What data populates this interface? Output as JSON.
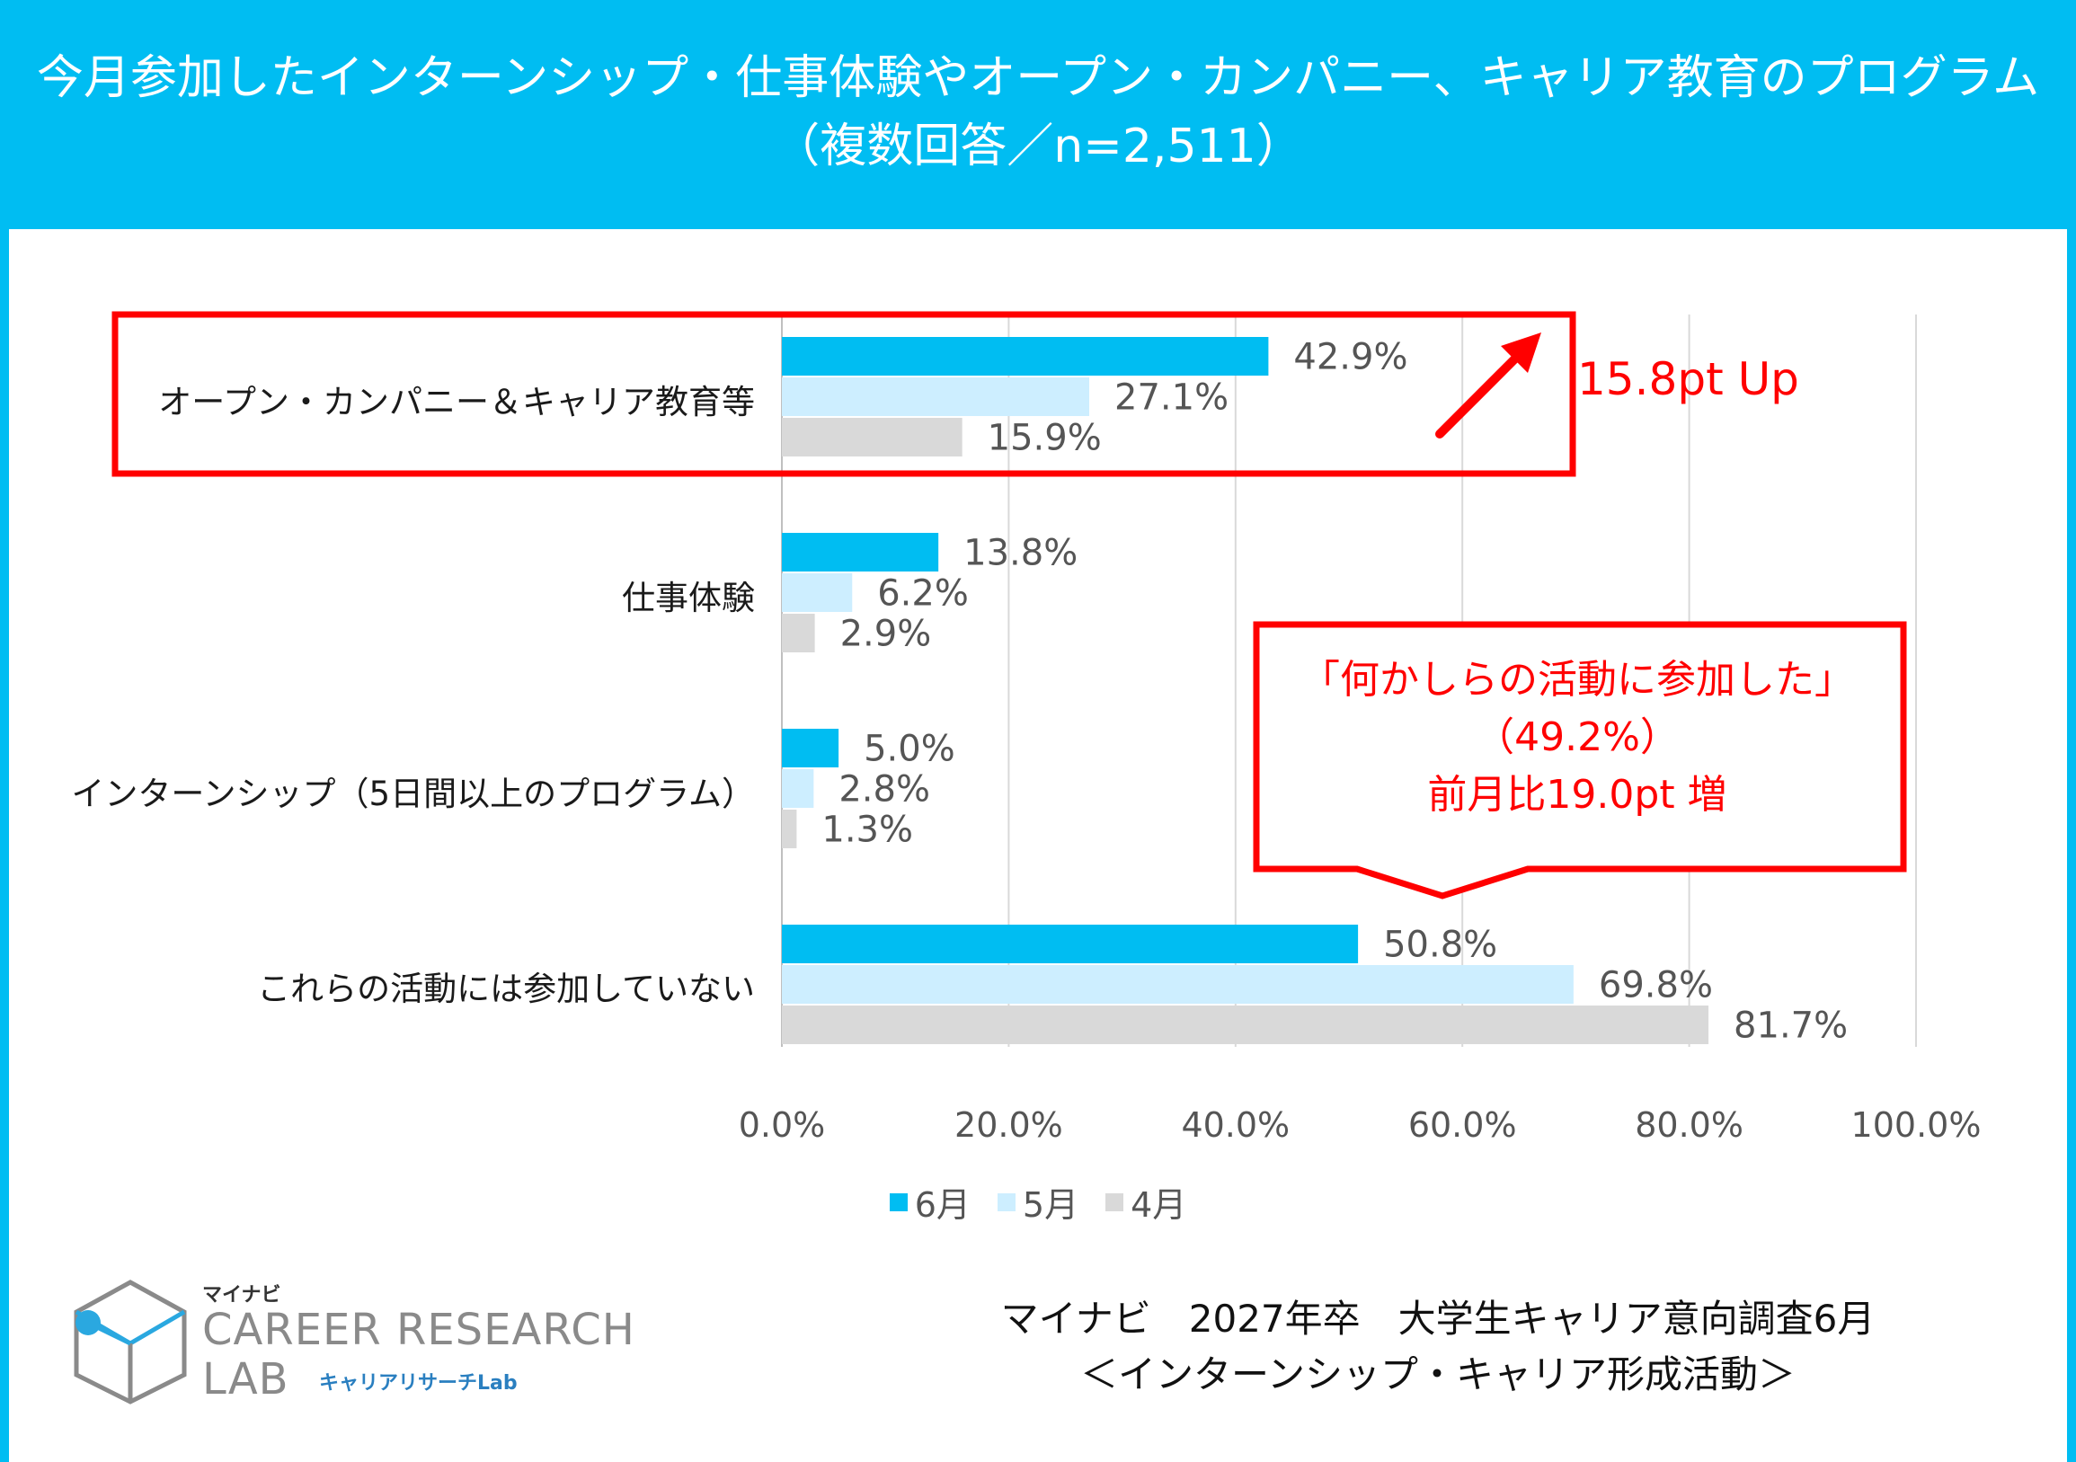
{
  "header": {
    "title_line1": "今月参加したインターンシップ・仕事体験やオープン・カンパニー、キャリア教育のプログラム",
    "title_line2": "（複数回答／n=2,511）"
  },
  "colors": {
    "header_bg": "#00bdf2",
    "june": "#00bdf2",
    "may": "#cdeeff",
    "april": "#d9d9d9",
    "highlight": "#ff0000"
  },
  "chart_data": {
    "type": "bar",
    "orientation": "horizontal",
    "categories": [
      "オープン・カンパニー＆キャリア教育等",
      "仕事体験",
      "インターンシップ（5日間以上のプログラム）",
      "これらの活動には参加していない"
    ],
    "series": [
      {
        "name": "6月",
        "values": [
          42.9,
          13.8,
          5.0,
          50.8
        ],
        "labels": [
          "42.9%",
          "13.8%",
          "5.0%",
          "50.8%"
        ]
      },
      {
        "name": "5月",
        "values": [
          27.1,
          6.2,
          2.8,
          69.8
        ],
        "labels": [
          "27.1%",
          "6.2%",
          "2.8%",
          "69.8%"
        ]
      },
      {
        "name": "4月",
        "values": [
          15.9,
          2.9,
          1.3,
          81.7
        ],
        "labels": [
          "15.9%",
          "2.9%",
          "1.3%",
          "81.7%"
        ]
      }
    ],
    "xlim": [
      0,
      100
    ],
    "xticks": [
      "0.0%",
      "20.0%",
      "40.0%",
      "60.0%",
      "80.0%",
      "100.0%"
    ],
    "grid": true,
    "legend_position": "bottom"
  },
  "annotations": {
    "up_label": "15.8pt Up",
    "callout_line1": "「何かしらの活動に参加した」",
    "callout_line2": "（49.2%）",
    "callout_line3": "前月比19.0pt 増"
  },
  "logo": {
    "small": "マイナビ",
    "big_line1": "CAREER RESEARCH",
    "big_line2": "LAB",
    "sub": "キャリアリサーチLab"
  },
  "source": {
    "line1": "マイナビ　2027年卒　大学生キャリア意向調査6月",
    "line2": "＜インターンシップ・キャリア形成活動＞"
  }
}
